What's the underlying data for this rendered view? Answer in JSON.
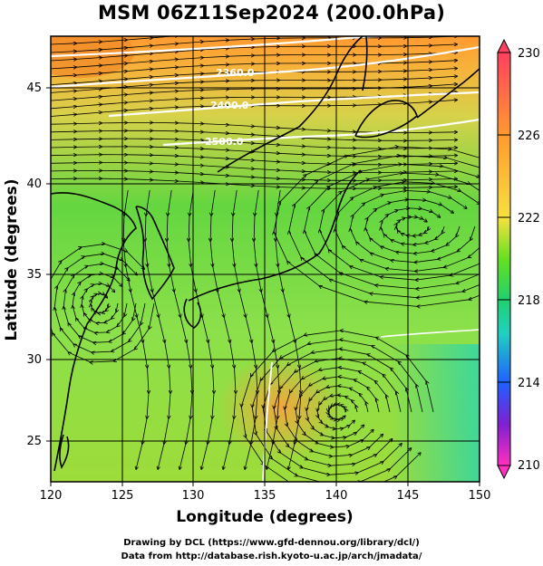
{
  "title": "MSM 06Z11Sep2024 (200.0hPa)",
  "map": {
    "xlabel": "Longitude (degrees)",
    "ylabel": "Latitude  (degrees)",
    "lon_range": [
      120,
      150
    ],
    "lat_range": [
      22.4,
      47.6
    ],
    "lon_ticks": [
      "120",
      "125",
      "130",
      "135",
      "140",
      "145",
      "150"
    ],
    "lat_ticks": [
      "25",
      "30",
      "35",
      "40",
      "45"
    ],
    "contour_labels": [
      "2360.0",
      "2400.0",
      "2500.0"
    ],
    "field": "temperature-like shaded field with streamlines and white height contours"
  },
  "colorbar": {
    "min": 210,
    "max": 230,
    "labels": [
      "230",
      "226",
      "222",
      "218",
      "214",
      "210"
    ],
    "colors": [
      "#ff4060",
      "#ff9a30",
      "#f7e040",
      "#66e020",
      "#20d0c0",
      "#2060ff",
      "#8020d0",
      "#ff30c0"
    ]
  },
  "credits": {
    "line1": "Drawing by DCL (https://www.gfd-dennou.org/library/dcl/)",
    "line2": "Data from http://database.rish.kyoto-u.ac.jp/arch/jmadata/"
  }
}
